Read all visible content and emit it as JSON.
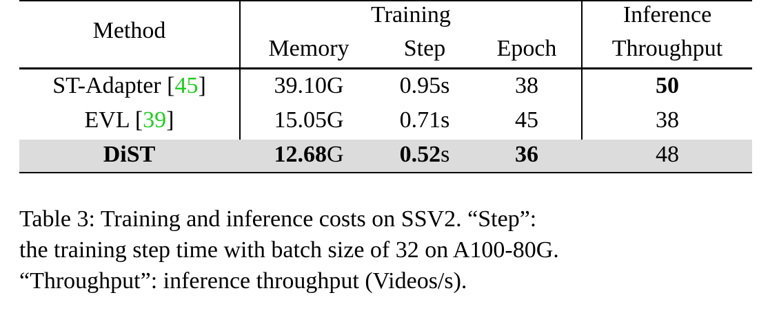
{
  "table": {
    "header": {
      "method": "Method",
      "training": "Training",
      "inference": "Inference",
      "memory": "Memory",
      "step": "Step",
      "epoch": "Epoch",
      "throughput": "Throughput"
    },
    "rows": [
      {
        "method": "ST-Adapter",
        "cite": "45",
        "memory": "39.10G",
        "step": "0.95s",
        "epoch": "38",
        "throughput": "50"
      },
      {
        "method": "EVL",
        "cite": "39",
        "memory": "15.05G",
        "step": "0.71s",
        "epoch": "45",
        "throughput": "38"
      },
      {
        "method": "DiST",
        "memory_num": "12.68",
        "memory_unit": "G",
        "step_num": "0.52",
        "step_unit": "s",
        "epoch": "36",
        "throughput": "48"
      }
    ]
  },
  "caption": {
    "line1": "Table 3: Training and inference costs on SSV2. “Step”:",
    "line2": "the training step time with batch size of 32 on A100-80G.",
    "line3": "“Throughput”: inference throughput (Videos/s)."
  }
}
